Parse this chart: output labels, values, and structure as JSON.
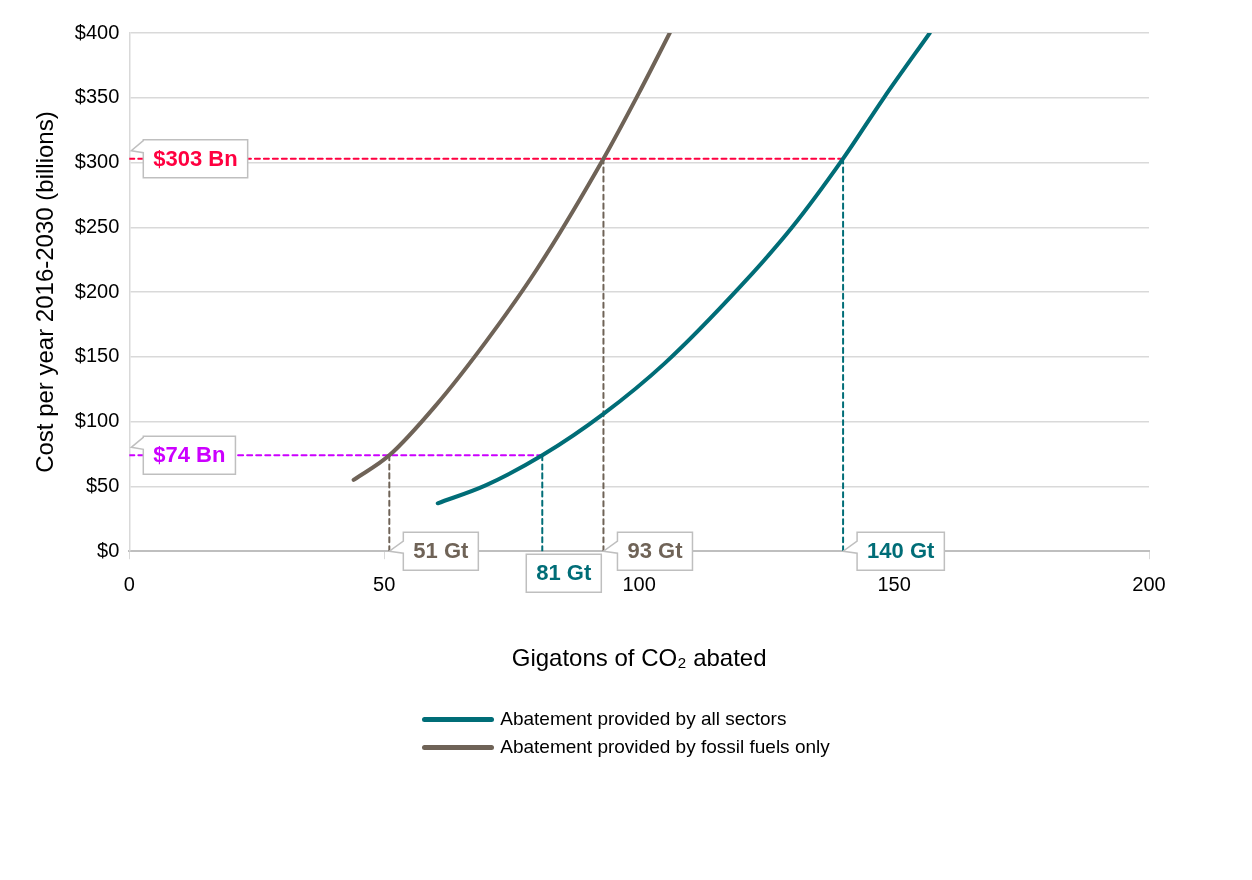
{
  "chart_data": {
    "type": "line",
    "xlabel": "Gigatons of CO₂ abated",
    "ylabel": "Cost per year 2016-2030 (billions)",
    "xlim": [
      0,
      200
    ],
    "xticks": [
      0,
      50,
      100,
      150,
      200
    ],
    "ylim": [
      0,
      400
    ],
    "yticks": [
      {
        "value": 0,
        "label": "$0"
      },
      {
        "value": 50,
        "label": "$50"
      },
      {
        "value": 100,
        "label": "$100"
      },
      {
        "value": 150,
        "label": "$150"
      },
      {
        "value": 200,
        "label": "$200"
      },
      {
        "value": 250,
        "label": "$250"
      },
      {
        "value": 300,
        "label": "$300"
      },
      {
        "value": 350,
        "label": "$350"
      },
      {
        "value": 400,
        "label": "$400"
      }
    ],
    "grid": "y",
    "legend": "bottom",
    "marker": "none",
    "line_style": "solid",
    "series": [
      {
        "name": "Abatement provided by all sectors",
        "color": "#006d77",
        "x": [
          60.5,
          70,
          81,
          93,
          105,
          120,
          130,
          140,
          148,
          157
        ],
        "values": [
          37,
          51,
          74,
          106,
          145,
          205,
          250,
          303,
          350,
          400
        ]
      },
      {
        "name": "Abatement provided by fossil fuels only",
        "color": "#6f6357",
        "x": [
          44,
          51,
          60,
          70,
          80,
          93,
          100,
          106
        ],
        "values": [
          55,
          74,
          112,
          162,
          218,
          303,
          354,
          400
        ]
      },
      {
        "color": "#ff0040",
        "line_style": "dashed",
        "x": [
          0,
          140
        ],
        "values": [
          303,
          303
        ]
      },
      {
        "color": "#cc00ff",
        "line_style": "dashed",
        "x": [
          0,
          81
        ],
        "values": [
          74,
          74
        ]
      },
      {
        "color": "#6f6357",
        "line_style": "dashed",
        "x": [
          51,
          51
        ],
        "values": [
          0,
          74
        ]
      },
      {
        "color": "#006d77",
        "line_style": "dashed",
        "x": [
          81,
          81
        ],
        "values": [
          0,
          74
        ]
      },
      {
        "color": "#6f6357",
        "line_style": "dashed",
        "x": [
          93,
          93
        ],
        "values": [
          0,
          303
        ]
      },
      {
        "color": "#006d77",
        "line_style": "dashed",
        "x": [
          140,
          140
        ],
        "values": [
          0,
          303
        ]
      }
    ],
    "annotations": [
      {
        "text": "$303 Bn",
        "x": 0,
        "y": 303
      },
      {
        "text": "$74 Bn",
        "x": 0,
        "y": 74
      },
      {
        "text": "51 Gt",
        "x": 51,
        "y": 0
      },
      {
        "text": "93 Gt",
        "x": 93,
        "y": 0
      },
      {
        "text": "140 Gt",
        "x": 140,
        "y": 0
      },
      {
        "text": "81 Gt",
        "x": 81,
        "y": 0
      }
    ]
  }
}
